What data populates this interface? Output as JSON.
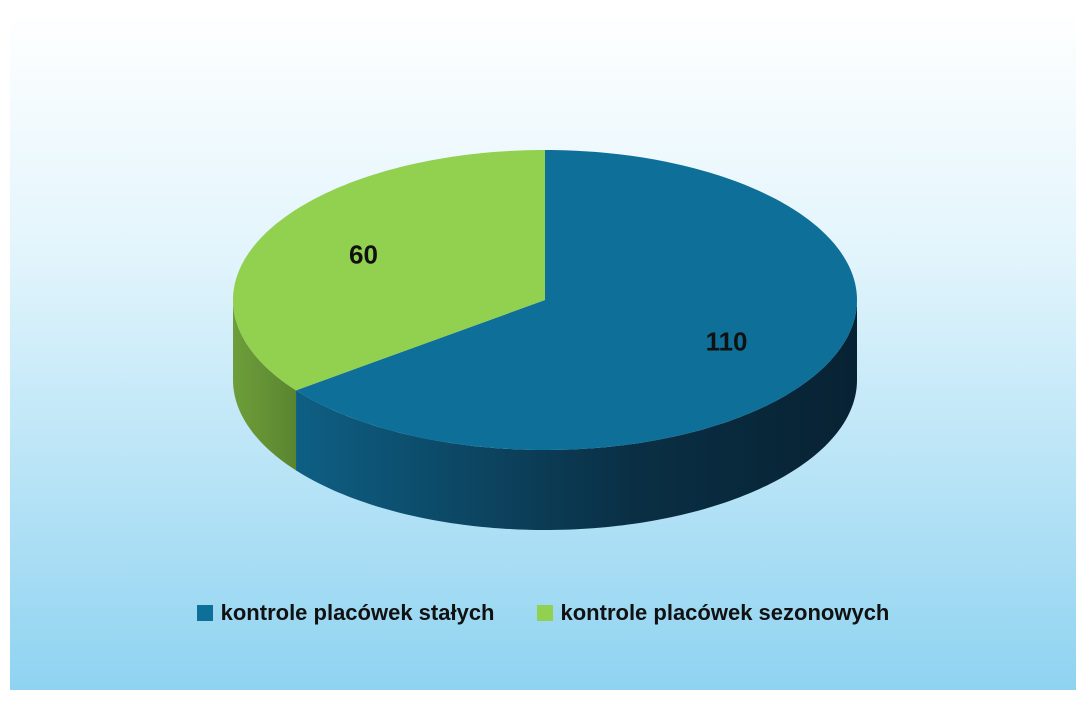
{
  "chart_data": {
    "type": "pie",
    "categories": [
      "kontrole placówek stałych",
      "kontrole placówek sezonowych"
    ],
    "values": [
      110,
      60
    ],
    "colors": [
      "#0e7099",
      "#92d050"
    ],
    "legend": "bottom"
  }
}
